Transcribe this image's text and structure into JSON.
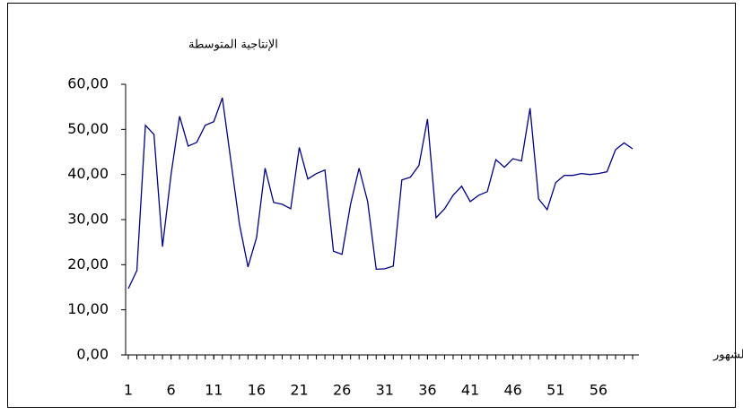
{
  "chart_data": {
    "type": "line",
    "y_label": "الإنتاجية المتوسطة",
    "x_label": "الشهور",
    "x": [
      1,
      2,
      3,
      4,
      5,
      6,
      7,
      8,
      9,
      10,
      11,
      12,
      13,
      14,
      15,
      16,
      17,
      18,
      19,
      20,
      21,
      22,
      23,
      24,
      25,
      26,
      27,
      28,
      29,
      30,
      31,
      32,
      33,
      34,
      35,
      36,
      37,
      38,
      39,
      40,
      41,
      42,
      43,
      44,
      45,
      46,
      47,
      48,
      49,
      50,
      51,
      52,
      53,
      54,
      55,
      56,
      57,
      58,
      59,
      60
    ],
    "series": [
      {
        "color": "#000080",
        "values": [
          14.7,
          18.7,
          50.9,
          48.9,
          24,
          40,
          52.9,
          46.3,
          47.1,
          50.9,
          51.7,
          57,
          43,
          29,
          19.5,
          26,
          41.4,
          33.8,
          33.4,
          32.4,
          46,
          39,
          40.2,
          41,
          23,
          22.3,
          33.4,
          41.4,
          34,
          19,
          19.1,
          19.7,
          38.8,
          39.4,
          42,
          52.3,
          30.4,
          32.4,
          35.4,
          37.4,
          34,
          35.4,
          36.2,
          43.3,
          41.6,
          43.5,
          43,
          54.7,
          34.6,
          32.2,
          38.2,
          39.8,
          39.8,
          40.2,
          40,
          40.2,
          40.6,
          45.5,
          47,
          45.7
        ]
      }
    ],
    "xlim": [
      1,
      60
    ],
    "xticks": [
      1,
      6,
      11,
      16,
      21,
      26,
      31,
      36,
      41,
      46,
      51,
      56
    ],
    "ylim": [
      0,
      60
    ],
    "yticks": [
      {
        "value": 0,
        "label": "0,00"
      },
      {
        "value": 10,
        "label": "10,00"
      },
      {
        "value": 20,
        "label": "20,00"
      },
      {
        "value": 30,
        "label": "30,00"
      },
      {
        "value": 40,
        "label": "40,00"
      },
      {
        "value": 50,
        "label": "50,00"
      },
      {
        "value": 60,
        "label": "60,00"
      }
    ]
  }
}
